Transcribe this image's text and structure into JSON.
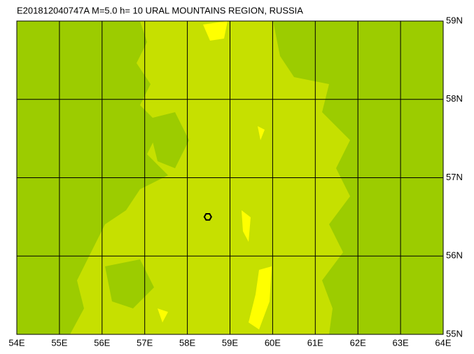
{
  "title": "E201812040747A M=5.0 h= 10 URAL MOUNTAINS REGION, RUSSIA",
  "map": {
    "xlim": [
      54,
      64
    ],
    "ylim": [
      55,
      59
    ],
    "xticks": [
      {
        "value": 54,
        "label": "54E"
      },
      {
        "value": 55,
        "label": "55E"
      },
      {
        "value": 56,
        "label": "56E"
      },
      {
        "value": 57,
        "label": "57E"
      },
      {
        "value": 58,
        "label": "58E"
      },
      {
        "value": 59,
        "label": "59E"
      },
      {
        "value": 60,
        "label": "60E"
      },
      {
        "value": 61,
        "label": "61E"
      },
      {
        "value": 62,
        "label": "62E"
      },
      {
        "value": 63,
        "label": "63E"
      },
      {
        "value": 64,
        "label": "64E"
      }
    ],
    "yticks": [
      {
        "value": 55,
        "label": "55N"
      },
      {
        "value": 56,
        "label": "56N"
      },
      {
        "value": 57,
        "label": "57N"
      },
      {
        "value": 58,
        "label": "58N"
      },
      {
        "value": 59,
        "label": "59N"
      }
    ],
    "grid": true,
    "epicenter": {
      "lon": 58.48,
      "lat": 56.5
    }
  }
}
